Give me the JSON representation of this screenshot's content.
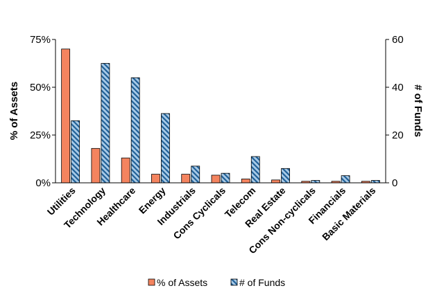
{
  "chart_data": {
    "type": "bar",
    "categories": [
      "Utilities",
      "Technology",
      "Healthcare",
      "Energy",
      "Industrials",
      "Cons Cyclicals",
      "Telecom",
      "Real Estate",
      "Cons Non-cyclicals",
      "Financials",
      "Basic Materials"
    ],
    "series": [
      {
        "name": "% of Assets",
        "axis": "left",
        "color": "#f4845f",
        "values": [
          70,
          18,
          13,
          4.5,
          4.5,
          4,
          2,
          1.5,
          0.8,
          0.8,
          0.8
        ]
      },
      {
        "name": "# of Funds",
        "axis": "right",
        "color": "#2e6ea6",
        "pattern": "diagonal-stripes",
        "values": [
          26,
          50,
          44,
          29,
          7,
          4,
          11,
          6,
          1,
          3,
          1
        ]
      }
    ],
    "title": "",
    "ylabel": "% of Assets",
    "y2label": "# of Funds",
    "ylim": [
      0,
      75
    ],
    "y2lim": [
      0,
      60
    ],
    "yticks": [
      "0%",
      "25%",
      "50%",
      "75%"
    ],
    "yticks_values": [
      0,
      25,
      50,
      75
    ],
    "y2ticks": [
      "0",
      "20",
      "40",
      "60"
    ],
    "y2ticks_values": [
      0,
      20,
      40,
      60
    ],
    "grid": false,
    "legend_position": "bottom"
  }
}
